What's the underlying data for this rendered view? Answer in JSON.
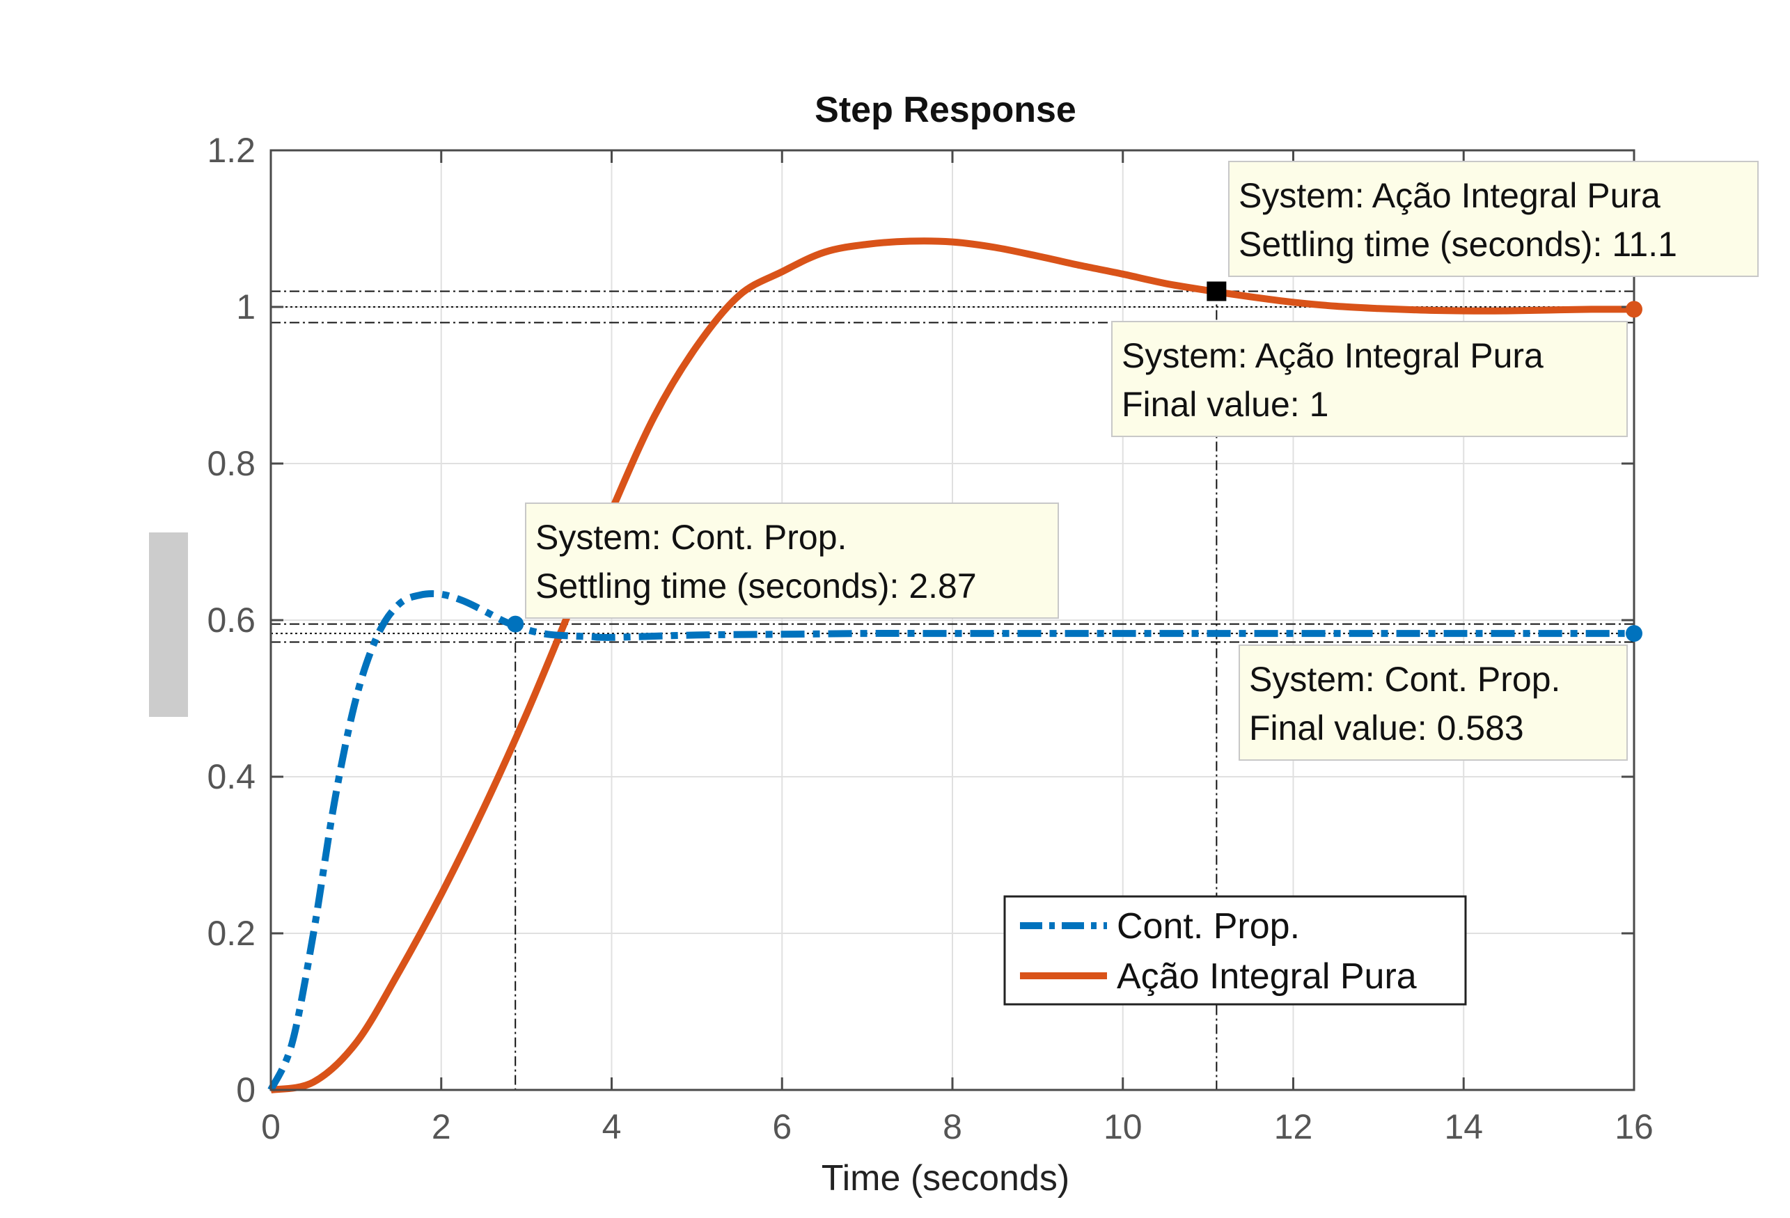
{
  "chart_data": {
    "type": "line",
    "title": "Step Response",
    "xlabel": "Time (seconds)",
    "ylabel": "",
    "xlim": [
      0,
      16
    ],
    "ylim": [
      0,
      1.2
    ],
    "xticks": [
      0,
      2,
      4,
      6,
      8,
      10,
      12,
      14,
      16
    ],
    "yticks": [
      0,
      0.2,
      0.4,
      0.6,
      0.8,
      1,
      1.2
    ],
    "xtick_labels": [
      "0",
      "2",
      "4",
      "6",
      "8",
      "10",
      "12",
      "14",
      "16"
    ],
    "ytick_labels": [
      "0",
      "0.2",
      "0.4",
      "0.6",
      "0.8",
      "1",
      "1.2"
    ],
    "grid": true,
    "legend_position": "bottom-right",
    "series": [
      {
        "name": "Cont. Prop.",
        "color": "#0072BD",
        "style": "dash-dot",
        "x": [
          0,
          0.25,
          0.5,
          0.75,
          1.0,
          1.25,
          1.5,
          1.75,
          2.0,
          2.25,
          2.5,
          2.75,
          3.0,
          3.25,
          3.5,
          3.75,
          4.0,
          5,
          6,
          7,
          8,
          10,
          12,
          14,
          16
        ],
        "y": [
          0,
          0.06,
          0.2,
          0.37,
          0.5,
          0.58,
          0.62,
          0.632,
          0.633,
          0.625,
          0.612,
          0.598,
          0.588,
          0.582,
          0.58,
          0.579,
          0.578,
          0.581,
          0.582,
          0.583,
          0.583,
          0.583,
          0.583,
          0.583,
          0.583
        ]
      },
      {
        "name": "Ação Integral Pura",
        "color": "#D95319",
        "style": "solid",
        "x": [
          0,
          0.5,
          1.0,
          1.5,
          2.0,
          2.5,
          3.0,
          3.5,
          4.0,
          4.5,
          5.0,
          5.5,
          6.0,
          6.5,
          7.0,
          7.5,
          8.0,
          8.5,
          9.0,
          9.5,
          10.0,
          10.5,
          11.0,
          11.5,
          12.0,
          12.5,
          13.0,
          13.5,
          14.0,
          14.5,
          15.0,
          15.5,
          16.0
        ],
        "y": [
          0,
          0.01,
          0.06,
          0.15,
          0.25,
          0.36,
          0.48,
          0.61,
          0.74,
          0.86,
          0.95,
          1.015,
          1.045,
          1.07,
          1.08,
          1.084,
          1.083,
          1.076,
          1.065,
          1.053,
          1.042,
          1.03,
          1.021,
          1.013,
          1.006,
          1.001,
          0.998,
          0.996,
          0.995,
          0.995,
          0.996,
          0.997,
          0.997
        ]
      }
    ],
    "annotations": [
      {
        "series": "Ação Integral Pura",
        "kind": "settling",
        "x": 11.1,
        "y": 1.02,
        "line1": "System: Ação Integral Pura",
        "line2": "Settling time (seconds): 11.1"
      },
      {
        "series": "Ação Integral Pura",
        "kind": "final",
        "x": 16,
        "y": 0.997,
        "line1": "System: Ação Integral Pura",
        "line2": "Final value: 1"
      },
      {
        "series": "Cont. Prop.",
        "kind": "settling",
        "x": 2.87,
        "y": 0.595,
        "line1": "System: Cont. Prop.",
        "line2": "Settling time (seconds): 2.87"
      },
      {
        "series": "Cont. Prop.",
        "kind": "final",
        "x": 16,
        "y": 0.583,
        "line1": "System: Cont. Prop.",
        "line2": "Final value: 0.583"
      }
    ],
    "reference_lines": {
      "horizontal": [
        1.02,
        1.0,
        0.98,
        0.595,
        0.583,
        0.572
      ],
      "vertical": [
        {
          "x": 2.87,
          "y_top": 0.595
        },
        {
          "x": 11.1,
          "y_top": 1.02
        }
      ]
    }
  }
}
